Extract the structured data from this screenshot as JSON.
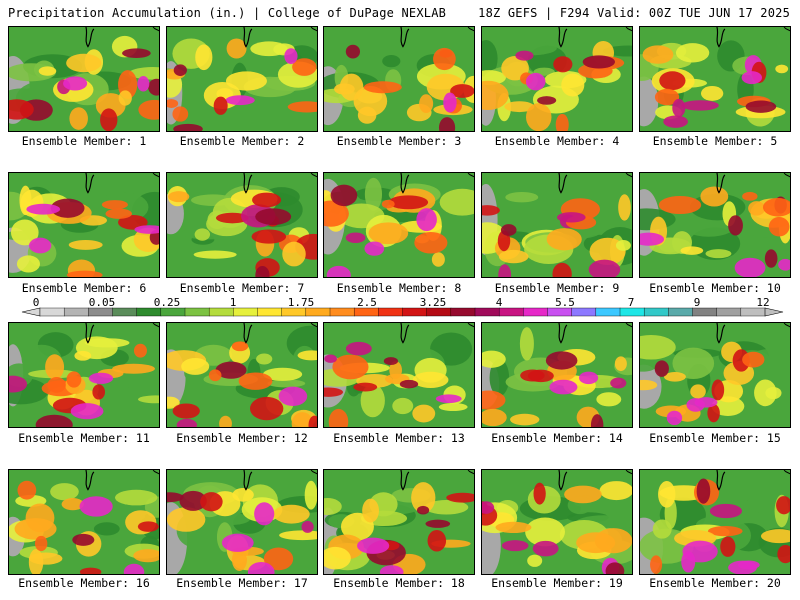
{
  "header": {
    "title_left": "Precipitation Accumulation (in.) | College of DuPage NEXLAB",
    "title_right": "18Z GEFS | F294 Valid: 00Z TUE JUN 17 2025"
  },
  "panels": [
    {
      "label": "Ensemble Member: 1"
    },
    {
      "label": "Ensemble Member: 2"
    },
    {
      "label": "Ensemble Member: 3"
    },
    {
      "label": "Ensemble Member: 4"
    },
    {
      "label": "Ensemble Member: 5"
    },
    {
      "label": "Ensemble Member: 6"
    },
    {
      "label": "Ensemble Member: 7"
    },
    {
      "label": "Ensemble Member: 8"
    },
    {
      "label": "Ensemble Member: 9"
    },
    {
      "label": "Ensemble Member: 10"
    },
    {
      "label": "Ensemble Member: 11"
    },
    {
      "label": "Ensemble Member: 12"
    },
    {
      "label": "Ensemble Member: 13"
    },
    {
      "label": "Ensemble Member: 14"
    },
    {
      "label": "Ensemble Member: 15"
    },
    {
      "label": "Ensemble Member: 16"
    },
    {
      "label": "Ensemble Member: 17"
    },
    {
      "label": "Ensemble Member: 18"
    },
    {
      "label": "Ensemble Member: 19"
    },
    {
      "label": "Ensemble Member: 20"
    }
  ],
  "colorbar": {
    "labels": [
      "0",
      "0.05",
      "0.25",
      "1",
      "1.75",
      "2.5",
      "3.25",
      "4",
      "5.5",
      "7",
      "9",
      "12"
    ],
    "colors": [
      "#d8d8d8",
      "#b4b4b4",
      "#8c8c8c",
      "#5a8c5a",
      "#2e8b2e",
      "#4aa63c",
      "#7cc242",
      "#b4dc3c",
      "#e6f03c",
      "#ffe632",
      "#ffc828",
      "#ffaa1e",
      "#ff8c1e",
      "#ff6414",
      "#f03214",
      "#d21414",
      "#b40a14",
      "#960a2e",
      "#a00a5a",
      "#c81482",
      "#e628c8",
      "#c850f0",
      "#8c78ff",
      "#3cc8ff",
      "#1ee6e6",
      "#32c8c8",
      "#5aaaaa",
      "#828282",
      "#a0a0a0",
      "#bebebe"
    ]
  }
}
